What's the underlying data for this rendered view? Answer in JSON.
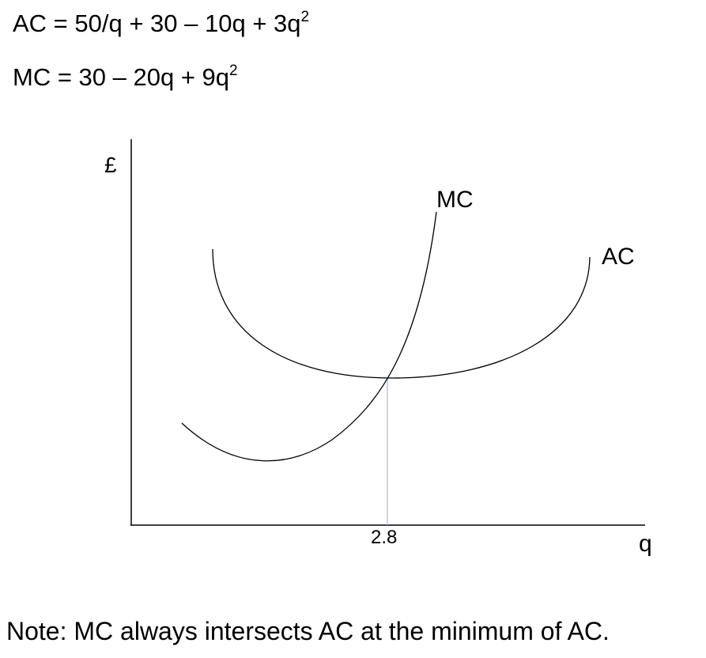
{
  "equations": {
    "ac": {
      "text": "AC = 50/q + 30 – 10q + 3q",
      "exponent": "2"
    },
    "mc": {
      "text": "MC = 30 – 20q + 9q",
      "exponent": "2"
    }
  },
  "diagram": {
    "y_axis_label": "£",
    "x_axis_label": "q",
    "curves": [
      {
        "id": "mc",
        "label": "MC"
      },
      {
        "id": "ac",
        "label": "AC"
      }
    ],
    "intersection": {
      "q_label": "2.8"
    },
    "colors": {
      "curve": "#000000",
      "axis": "#000000",
      "dropline": "#9cc3e6"
    }
  },
  "note": "Note: MC always intersects AC at the minimum of AC."
}
